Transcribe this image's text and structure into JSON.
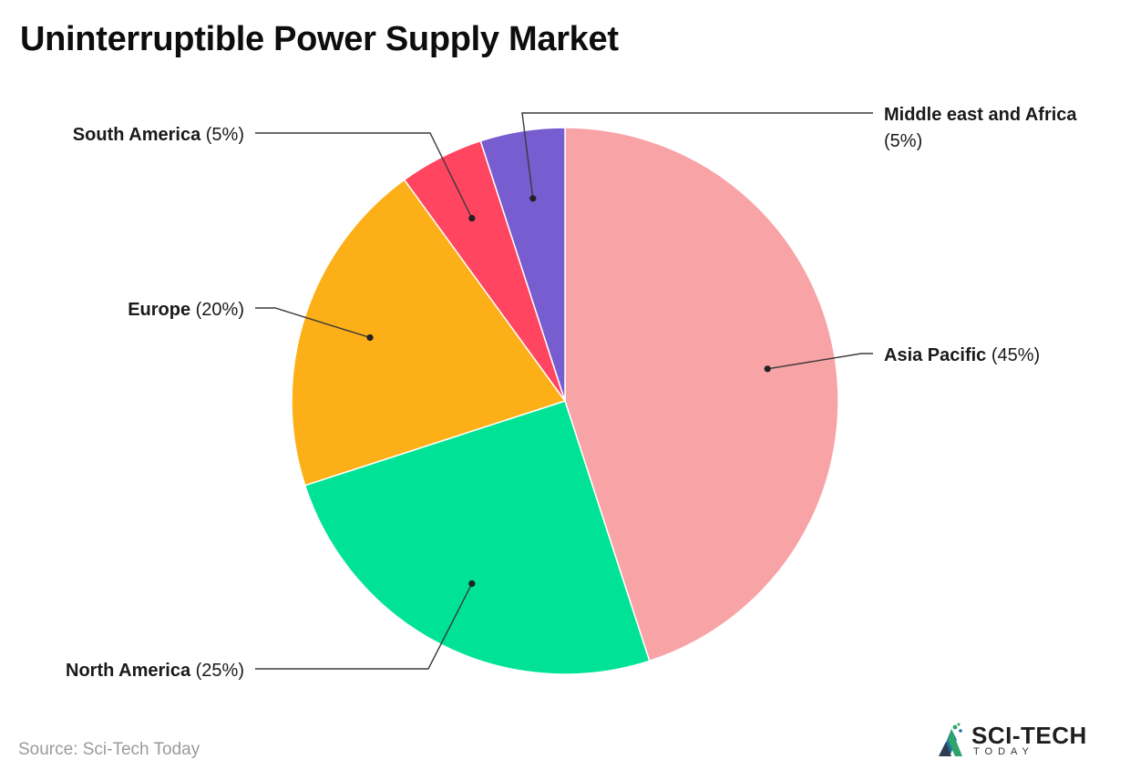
{
  "title": "Uninterruptible Power Supply Market",
  "source": "Source: Sci-Tech Today",
  "brand": {
    "name": "SCI-TECH",
    "sub": "TODAY",
    "logo_icon": "sci-tech-logo-icon"
  },
  "chart_data": {
    "type": "pie",
    "start": "top",
    "direction": "clockwise",
    "slices": [
      {
        "label": "Asia Pacific",
        "pct_text": "(45%)",
        "value": 45,
        "color": "#F8A3A6"
      },
      {
        "label": "North America",
        "pct_text": "(25%)",
        "value": 25,
        "color": "#00E396"
      },
      {
        "label": "Europe",
        "pct_text": "(20%)",
        "value": 20,
        "color": "#FDAF17"
      },
      {
        "label": "South America",
        "pct_text": "(5%)",
        "value": 5,
        "color": "#FF4560"
      },
      {
        "label": "Middle east and Africa",
        "label_lines": [
          "Middle east and Africa",
          "(5%)"
        ],
        "pct_text": "(5%)",
        "value": 5,
        "color": "#775DD0"
      }
    ]
  }
}
